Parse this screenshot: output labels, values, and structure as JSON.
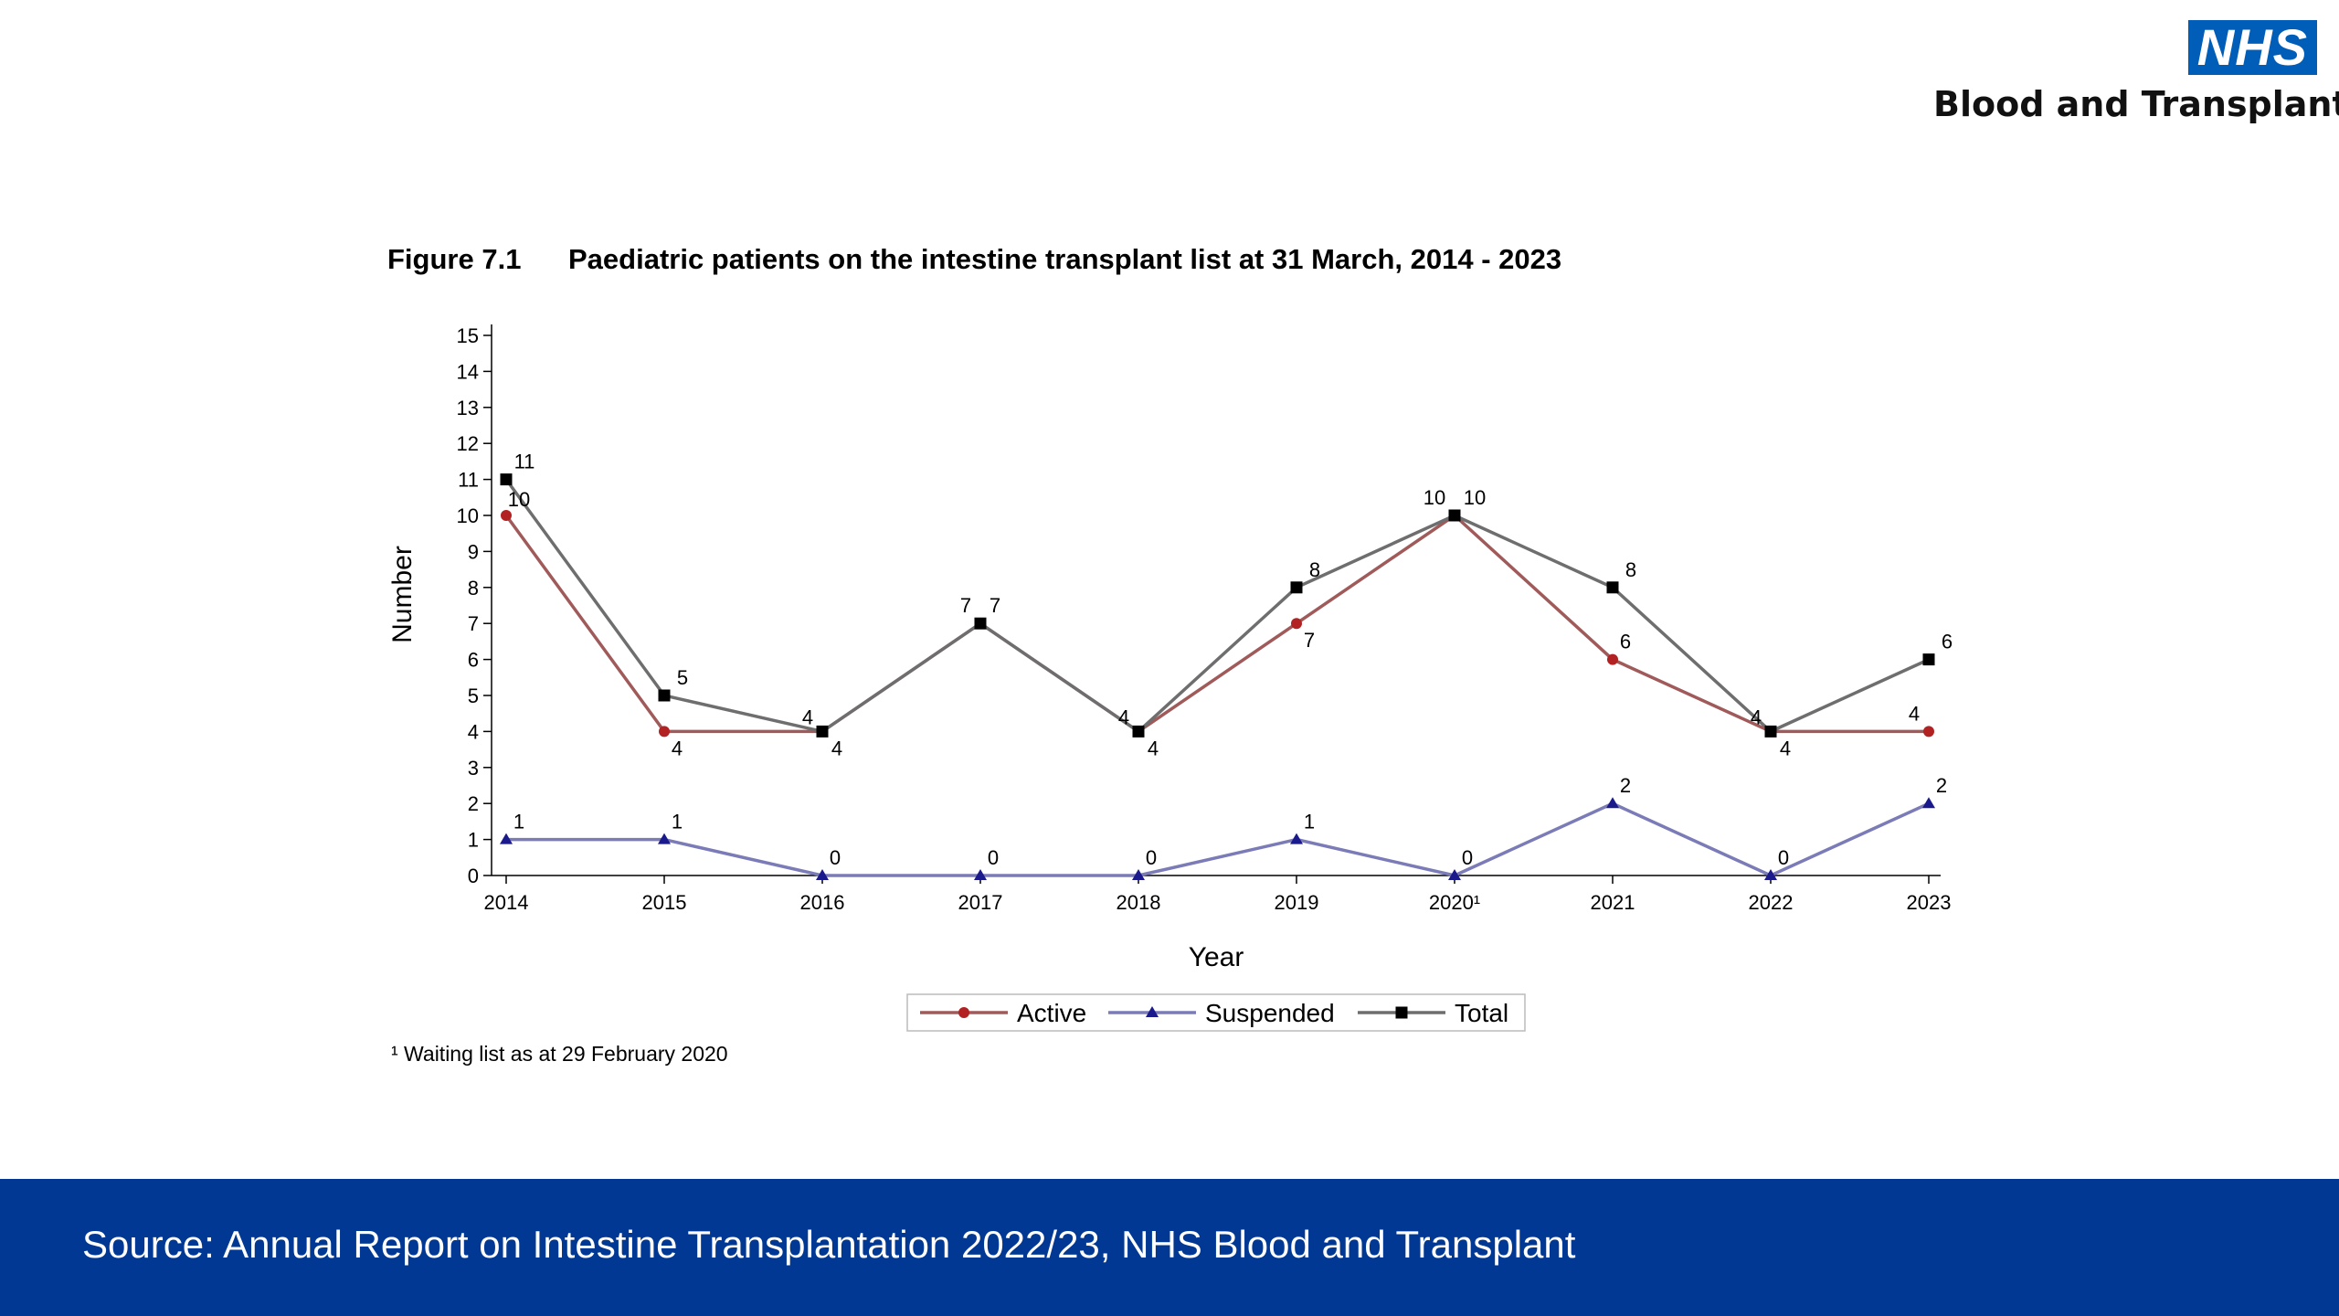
{
  "logo": {
    "badge": "NHS",
    "org": "Blood and Transplant"
  },
  "figure": {
    "number": "Figure 7.1",
    "title": "Paediatric patients on the intestine transplant list at 31 March, 2014 - 2023"
  },
  "footnote": "¹ Waiting list as at 29 February 2020",
  "source": "Source: Annual Report on Intestine Transplantation 2022/23, NHS Blood and Transplant",
  "chart_data": {
    "type": "line",
    "categories": [
      "2014",
      "2015",
      "2016",
      "2017",
      "2018",
      "2019",
      "2020¹",
      "2021",
      "2022",
      "2023"
    ],
    "xlabel": "Year",
    "ylabel": "Number",
    "ylim": [
      0,
      15
    ],
    "yticks": [
      0,
      1,
      2,
      3,
      4,
      5,
      6,
      7,
      8,
      9,
      10,
      11,
      12,
      13,
      14,
      15
    ],
    "legend_position": "bottom",
    "series": [
      {
        "name": "Active",
        "values": [
          10,
          4,
          4,
          7,
          4,
          7,
          10,
          6,
          4,
          4
        ],
        "color": "#a05a5a",
        "marker_color": "#b22222",
        "marker": "circle"
      },
      {
        "name": "Suspended",
        "values": [
          1,
          1,
          0,
          0,
          0,
          1,
          0,
          2,
          0,
          2
        ],
        "color": "#7b7bb8",
        "marker_color": "#1a1a8c",
        "marker": "triangle"
      },
      {
        "name": "Total",
        "values": [
          11,
          5,
          4,
          7,
          4,
          8,
          10,
          8,
          4,
          6
        ],
        "color": "#6e6e6e",
        "marker_color": "#000000",
        "marker": "square"
      }
    ]
  }
}
